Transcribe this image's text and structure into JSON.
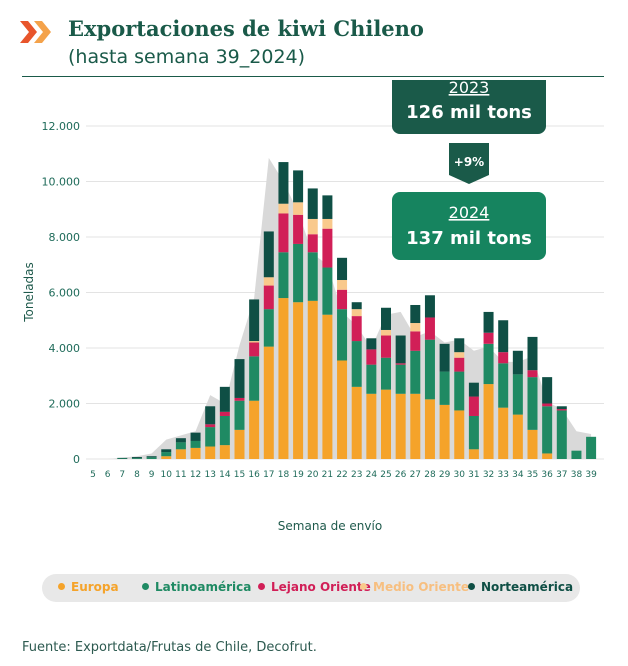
{
  "header": {
    "title": "Exportaciones de kiwi Chileno",
    "subtitle": "(hasta semana 39_2024)"
  },
  "callouts": {
    "y2023": {
      "year": "2023",
      "value": "126 mil tons"
    },
    "change": "+9%",
    "y2024": {
      "year": "2024",
      "value": "137 mil tons"
    }
  },
  "footer": {
    "source": "Fuente: Exportdata/Frutas de Chile, Decofrut."
  },
  "colors": {
    "europa": "#f5a32a",
    "latinoamerica": "#1f8a63",
    "lejano_oriente": "#d11f57",
    "medio_oriente": "#f9c98c",
    "norteamerica": "#0f4f45",
    "area_2023": "#d9d9d9",
    "callout_dark": "#1a5a49",
    "callout_green": "#16845f"
  },
  "chart_data": {
    "type": "bar",
    "stacked": true,
    "xlabel": "Semana de envío",
    "ylabel": "Toneladas",
    "ylim": [
      0,
      12000
    ],
    "yticks": [
      "0",
      "2.000",
      "4.000",
      "6.000",
      "8.000",
      "10.000",
      "12.000"
    ],
    "ytick_values": [
      0,
      2000,
      4000,
      6000,
      8000,
      10000,
      12000
    ],
    "grid": true,
    "legend_position": "bottom",
    "categories": [
      "5",
      "6",
      "7",
      "8",
      "9",
      "10",
      "11",
      "12",
      "13",
      "14",
      "15",
      "16",
      "17",
      "18",
      "19",
      "20",
      "21",
      "22",
      "23",
      "24",
      "25",
      "26",
      "27",
      "28",
      "29",
      "30",
      "31",
      "32",
      "33",
      "34",
      "35",
      "36",
      "37",
      "38",
      "39"
    ],
    "series": [
      {
        "name": "Europa",
        "key": "europa",
        "values": [
          0,
          0,
          0,
          0,
          0,
          100,
          350,
          400,
          450,
          500,
          1050,
          2100,
          4050,
          5800,
          5650,
          5700,
          5200,
          3550,
          2600,
          2350,
          2500,
          2350,
          2350,
          2150,
          1950,
          1750,
          350,
          2700,
          1850,
          1600,
          1050,
          200,
          0,
          0,
          0
        ]
      },
      {
        "name": "Latinoamérica",
        "key": "latinoamerica",
        "values": [
          0,
          0,
          20,
          30,
          60,
          150,
          250,
          250,
          700,
          1050,
          1050,
          1600,
          1350,
          1650,
          2100,
          1750,
          1700,
          1850,
          1650,
          1050,
          1150,
          1050,
          1550,
          2150,
          1200,
          1400,
          1200,
          1450,
          1600,
          1450,
          1900,
          1700,
          1750,
          300,
          800
        ]
      },
      {
        "name": "Lejano Oriente",
        "key": "lejano_oriente",
        "values": [
          0,
          0,
          0,
          0,
          0,
          0,
          0,
          0,
          100,
          150,
          100,
          500,
          850,
          1400,
          1050,
          650,
          1400,
          700,
          900,
          550,
          800,
          50,
          700,
          800,
          0,
          500,
          700,
          400,
          400,
          0,
          250,
          100,
          50,
          0,
          0
        ]
      },
      {
        "name": "Medio Oriente",
        "key": "medio_oriente",
        "values": [
          0,
          0,
          0,
          0,
          0,
          0,
          0,
          0,
          0,
          0,
          0,
          50,
          300,
          350,
          450,
          550,
          350,
          350,
          250,
          0,
          200,
          0,
          300,
          0,
          0,
          200,
          0,
          0,
          0,
          0,
          0,
          0,
          0,
          0,
          0
        ]
      },
      {
        "name": "Norteamérica",
        "key": "norteamerica",
        "values": [
          0,
          0,
          20,
          40,
          40,
          100,
          150,
          300,
          650,
          900,
          1400,
          1500,
          1650,
          1500,
          1150,
          1100,
          850,
          800,
          250,
          400,
          800,
          1000,
          650,
          800,
          1000,
          500,
          500,
          750,
          1150,
          850,
          1200,
          950,
          100,
          0,
          0
        ]
      }
    ],
    "area_2023": {
      "name": "2023",
      "values": [
        0,
        0,
        50,
        100,
        200,
        700,
        850,
        1000,
        2300,
        2000,
        4100,
        5800,
        10850,
        10000,
        8900,
        7400,
        7000,
        5300,
        4800,
        4000,
        5200,
        5300,
        4400,
        4600,
        4200,
        4300,
        3900,
        4050,
        3500,
        3500,
        3700,
        2050,
        1800,
        1000,
        900
      ]
    }
  }
}
